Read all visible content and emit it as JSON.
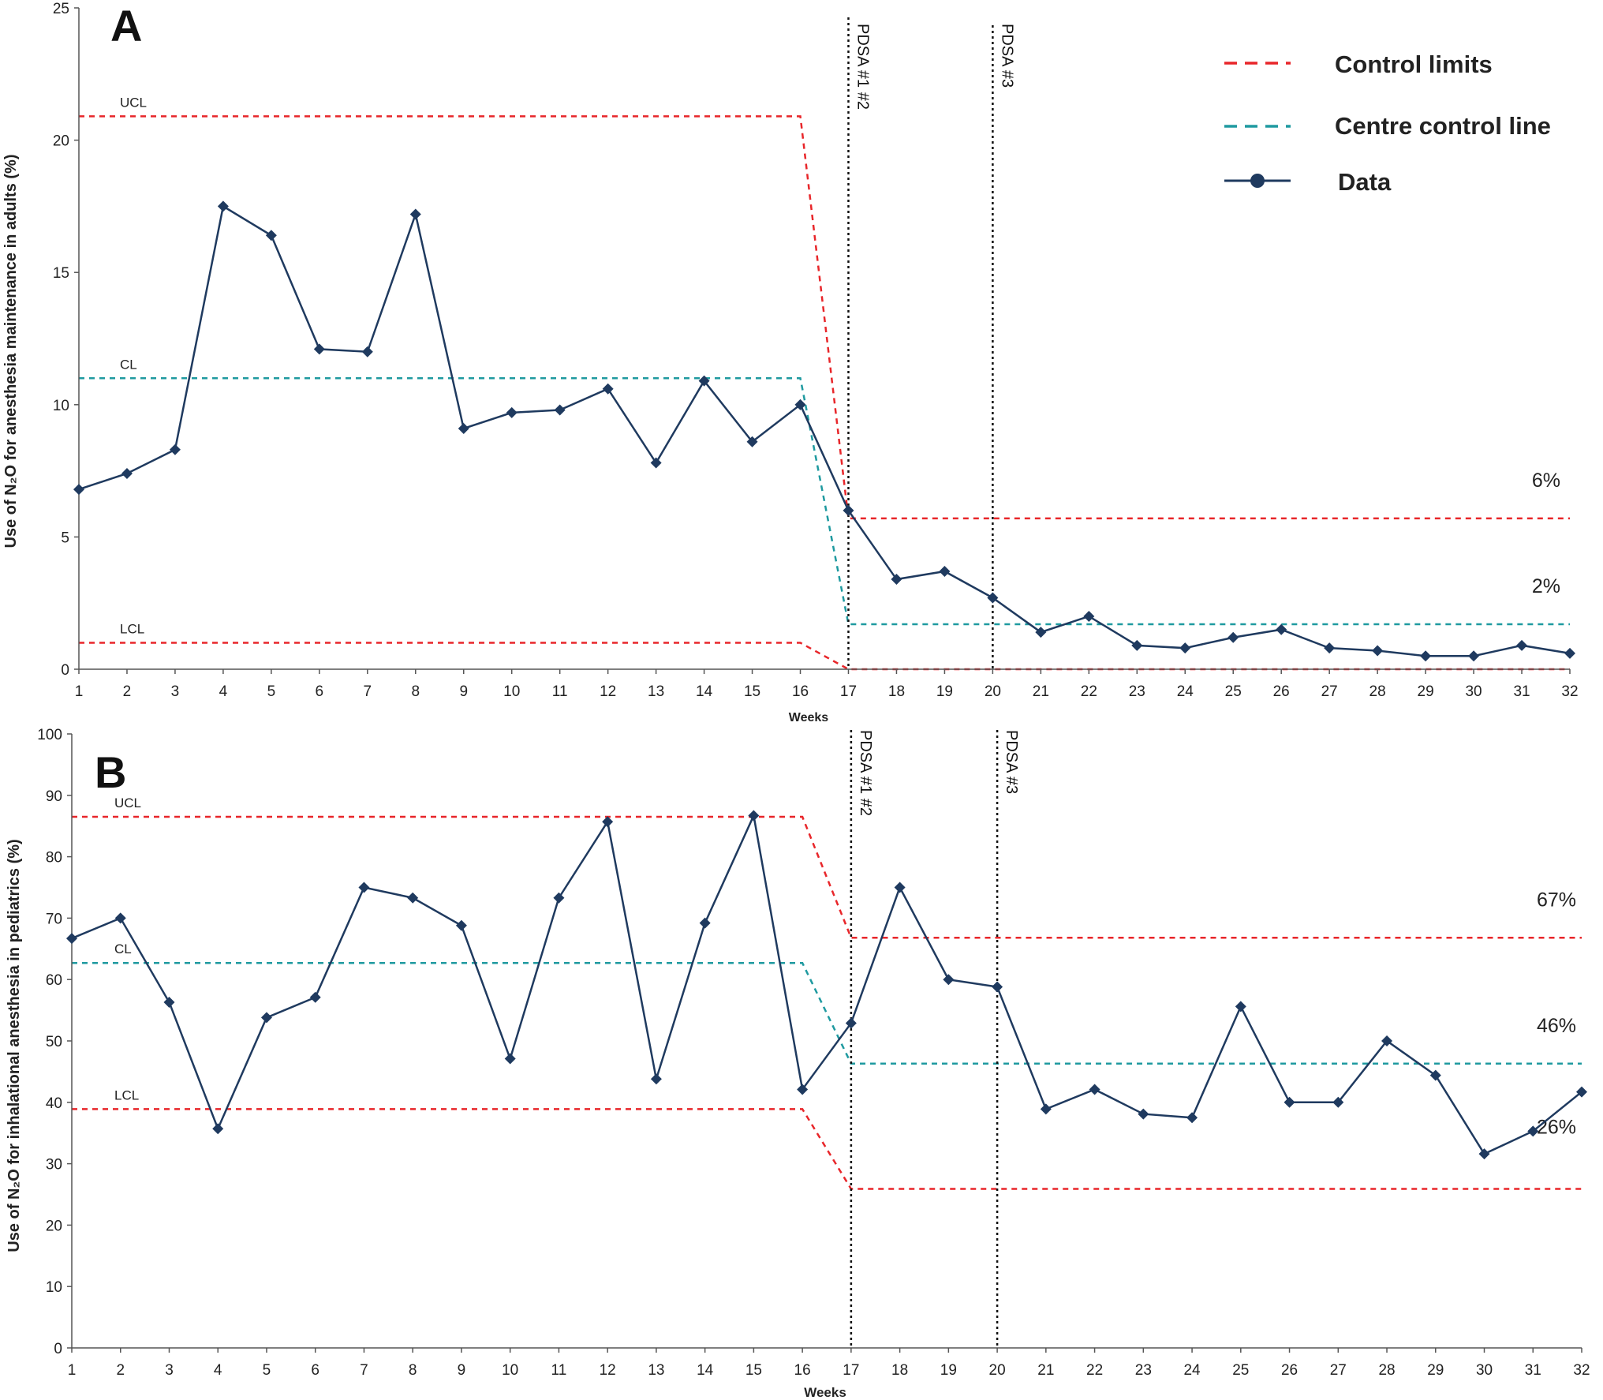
{
  "legend": {
    "control_limits": "Control limits",
    "centre_line": "Centre control line",
    "data": "Data",
    "colors": {
      "control": "#e8262a",
      "centre": "#1f9aa0",
      "data": "#1f3a5f"
    }
  },
  "chart_data": [
    {
      "panel": "A",
      "type": "line",
      "xlabel": "Weeks",
      "ylabel": "Use of N₂O for anesthesia maintenance in adults (%)",
      "ylim": [
        0,
        25
      ],
      "yticks": [
        0,
        5,
        10,
        15,
        20,
        25
      ],
      "x": [
        1,
        2,
        3,
        4,
        5,
        6,
        7,
        8,
        9,
        10,
        11,
        12,
        13,
        14,
        15,
        16,
        17,
        18,
        19,
        20,
        21,
        22,
        23,
        24,
        25,
        26,
        27,
        28,
        29,
        30,
        31,
        32
      ],
      "series": [
        {
          "name": "Data",
          "values": [
            6.8,
            7.4,
            8.3,
            17.5,
            16.4,
            12.1,
            12.0,
            17.2,
            9.1,
            9.7,
            9.8,
            10.6,
            7.8,
            10.9,
            8.6,
            10.0,
            6.0,
            3.4,
            3.7,
            2.7,
            1.4,
            2.0,
            0.9,
            0.8,
            1.2,
            1.5,
            0.8,
            0.7,
            0.5,
            0.5,
            0.9,
            0.6
          ]
        }
      ],
      "limits": {
        "ucl": {
          "label": "UCL",
          "pre": 20.9,
          "post": 5.7
        },
        "cl": {
          "label": "CL",
          "pre": 11.0,
          "post": 1.7
        },
        "lcl": {
          "label": "LCL",
          "pre": 1.0,
          "post": 0.0
        },
        "post_labels": {
          "ucl": "6%",
          "cl": "2%"
        }
      },
      "phase_change_week": 17,
      "annotations": [
        {
          "week": 17,
          "text": "PDSA #1 #2"
        },
        {
          "week": 20,
          "text": "PDSA #3"
        }
      ]
    },
    {
      "panel": "B",
      "type": "line",
      "xlabel": "Weeks",
      "ylabel": "Use of N₂O for inhalational anesthesia in pediatrics (%)",
      "ylim": [
        0,
        100
      ],
      "yticks": [
        0,
        10,
        20,
        30,
        40,
        50,
        60,
        70,
        80,
        90,
        100
      ],
      "x": [
        1,
        2,
        3,
        4,
        5,
        6,
        7,
        8,
        9,
        10,
        11,
        12,
        13,
        14,
        15,
        16,
        17,
        18,
        19,
        20,
        21,
        22,
        23,
        24,
        25,
        26,
        27,
        28,
        29,
        30,
        31,
        32
      ],
      "series": [
        {
          "name": "Data",
          "values": [
            66.7,
            70,
            56.3,
            35.7,
            53.8,
            57.1,
            75,
            73.3,
            68.8,
            47.1,
            73.3,
            85.7,
            43.8,
            69.2,
            86.7,
            42.1,
            52.9,
            75,
            60,
            58.8,
            38.9,
            42.1,
            38.1,
            37.5,
            55.6,
            40,
            40,
            50,
            44.4,
            31.6,
            35.3,
            41.7
          ]
        }
      ],
      "limits": {
        "ucl": {
          "label": "UCL",
          "pre": 86.5,
          "post": 66.8
        },
        "cl": {
          "label": "CL",
          "pre": 62.7,
          "post": 46.3
        },
        "lcl": {
          "label": "LCL",
          "pre": 38.9,
          "post": 25.9
        },
        "post_labels": {
          "ucl": "67%",
          "cl": "46%",
          "lcl": "26%"
        }
      },
      "phase_change_week": 17,
      "annotations": [
        {
          "week": 17,
          "text": "PDSA #1 #2"
        },
        {
          "week": 20,
          "text": "PDSA #3"
        }
      ]
    }
  ]
}
